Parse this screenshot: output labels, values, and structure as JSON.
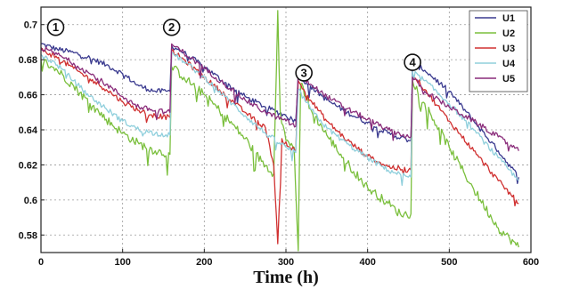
{
  "chart_data": {
    "type": "line",
    "title": "",
    "xlabel": "Time (h)",
    "ylabel": "",
    "xlim": [
      0,
      600
    ],
    "ylim": [
      0.57,
      0.71
    ],
    "x_ticks": [
      0,
      100,
      200,
      300,
      400,
      500,
      600
    ],
    "y_ticks": [
      0.58,
      0.6,
      0.62,
      0.64,
      0.66,
      0.68,
      0.7
    ],
    "grid": true,
    "legend": "top-right",
    "annotations": [
      {
        "label": "1",
        "x": 18,
        "y": 0.6985
      },
      {
        "label": "2",
        "x": 160,
        "y": 0.6985
      },
      {
        "label": "3",
        "x": 322,
        "y": 0.6725
      },
      {
        "label": "4",
        "x": 455,
        "y": 0.6785
      }
    ],
    "series": [
      {
        "name": "U1",
        "color": "#3a3a8f",
        "points": [
          [
            0,
            0.689
          ],
          [
            20,
            0.686
          ],
          [
            40,
            0.684
          ],
          [
            60,
            0.681
          ],
          [
            80,
            0.677
          ],
          [
            100,
            0.672
          ],
          [
            120,
            0.665
          ],
          [
            140,
            0.662
          ],
          [
            158,
            0.662
          ],
          [
            160,
            0.688
          ],
          [
            175,
            0.684
          ],
          [
            200,
            0.676
          ],
          [
            225,
            0.667
          ],
          [
            250,
            0.659
          ],
          [
            275,
            0.653
          ],
          [
            300,
            0.648
          ],
          [
            312,
            0.645
          ],
          [
            315,
            0.671
          ],
          [
            330,
            0.665
          ],
          [
            350,
            0.657
          ],
          [
            375,
            0.65
          ],
          [
            400,
            0.644
          ],
          [
            425,
            0.638
          ],
          [
            450,
            0.634
          ],
          [
            453,
            0.634
          ],
          [
            455,
            0.678
          ],
          [
            470,
            0.674
          ],
          [
            500,
            0.662
          ],
          [
            530,
            0.645
          ],
          [
            560,
            0.628
          ],
          [
            585,
            0.613
          ]
        ]
      },
      {
        "name": "U2",
        "color": "#7abf3c",
        "points": [
          [
            0,
            0.68
          ],
          [
            20,
            0.674
          ],
          [
            40,
            0.665
          ],
          [
            60,
            0.655
          ],
          [
            80,
            0.646
          ],
          [
            100,
            0.638
          ],
          [
            120,
            0.632
          ],
          [
            140,
            0.628
          ],
          [
            158,
            0.626
          ],
          [
            160,
            0.676
          ],
          [
            175,
            0.67
          ],
          [
            200,
            0.66
          ],
          [
            225,
            0.648
          ],
          [
            250,
            0.635
          ],
          [
            270,
            0.622
          ],
          [
            285,
            0.615
          ],
          [
            290,
            0.708
          ],
          [
            293,
            0.65
          ],
          [
            300,
            0.634
          ],
          [
            310,
            0.63
          ],
          [
            315,
            0.571
          ],
          [
            318,
            0.666
          ],
          [
            330,
            0.652
          ],
          [
            350,
            0.637
          ],
          [
            375,
            0.621
          ],
          [
            400,
            0.607
          ],
          [
            425,
            0.598
          ],
          [
            440,
            0.592
          ],
          [
            453,
            0.592
          ],
          [
            455,
            0.668
          ],
          [
            470,
            0.655
          ],
          [
            500,
            0.63
          ],
          [
            530,
            0.606
          ],
          [
            560,
            0.584
          ],
          [
            585,
            0.573
          ]
        ]
      },
      {
        "name": "U3",
        "color": "#d03030",
        "points": [
          [
            0,
            0.686
          ],
          [
            20,
            0.681
          ],
          [
            40,
            0.675
          ],
          [
            60,
            0.669
          ],
          [
            80,
            0.663
          ],
          [
            100,
            0.656
          ],
          [
            120,
            0.651
          ],
          [
            140,
            0.648
          ],
          [
            158,
            0.647
          ],
          [
            160,
            0.685
          ],
          [
            175,
            0.68
          ],
          [
            200,
            0.67
          ],
          [
            225,
            0.66
          ],
          [
            250,
            0.65
          ],
          [
            275,
            0.641
          ],
          [
            285,
            0.62
          ],
          [
            290,
            0.575
          ],
          [
            295,
            0.635
          ],
          [
            305,
            0.63
          ],
          [
            312,
            0.628
          ],
          [
            315,
            0.668
          ],
          [
            330,
            0.657
          ],
          [
            350,
            0.645
          ],
          [
            375,
            0.634
          ],
          [
            400,
            0.625
          ],
          [
            425,
            0.619
          ],
          [
            450,
            0.617
          ],
          [
            453,
            0.617
          ],
          [
            455,
            0.672
          ],
          [
            470,
            0.663
          ],
          [
            500,
            0.645
          ],
          [
            530,
            0.628
          ],
          [
            560,
            0.611
          ],
          [
            585,
            0.598
          ]
        ]
      },
      {
        "name": "U4",
        "color": "#8fcfdc",
        "points": [
          [
            0,
            0.683
          ],
          [
            20,
            0.677
          ],
          [
            40,
            0.668
          ],
          [
            60,
            0.659
          ],
          [
            80,
            0.652
          ],
          [
            100,
            0.645
          ],
          [
            120,
            0.64
          ],
          [
            140,
            0.638
          ],
          [
            158,
            0.637
          ],
          [
            160,
            0.684
          ],
          [
            175,
            0.679
          ],
          [
            200,
            0.67
          ],
          [
            225,
            0.659
          ],
          [
            250,
            0.648
          ],
          [
            275,
            0.638
          ],
          [
            300,
            0.63
          ],
          [
            312,
            0.627
          ],
          [
            315,
            0.663
          ],
          [
            330,
            0.652
          ],
          [
            350,
            0.641
          ],
          [
            375,
            0.632
          ],
          [
            400,
            0.624
          ],
          [
            425,
            0.617
          ],
          [
            450,
            0.613
          ],
          [
            453,
            0.613
          ],
          [
            455,
            0.673
          ],
          [
            470,
            0.668
          ],
          [
            500,
            0.655
          ],
          [
            530,
            0.64
          ],
          [
            560,
            0.624
          ],
          [
            585,
            0.611
          ]
        ]
      },
      {
        "name": "U5",
        "color": "#8a2c7a",
        "points": [
          [
            0,
            0.687
          ],
          [
            20,
            0.683
          ],
          [
            40,
            0.678
          ],
          [
            60,
            0.672
          ],
          [
            80,
            0.666
          ],
          [
            100,
            0.659
          ],
          [
            120,
            0.653
          ],
          [
            140,
            0.651
          ],
          [
            158,
            0.65
          ],
          [
            160,
            0.689
          ],
          [
            175,
            0.684
          ],
          [
            200,
            0.675
          ],
          [
            225,
            0.666
          ],
          [
            250,
            0.657
          ],
          [
            275,
            0.65
          ],
          [
            300,
            0.645
          ],
          [
            312,
            0.642
          ],
          [
            315,
            0.672
          ],
          [
            330,
            0.666
          ],
          [
            350,
            0.659
          ],
          [
            375,
            0.652
          ],
          [
            400,
            0.646
          ],
          [
            425,
            0.64
          ],
          [
            450,
            0.636
          ],
          [
            453,
            0.636
          ],
          [
            455,
            0.67
          ],
          [
            470,
            0.662
          ],
          [
            500,
            0.653
          ],
          [
            530,
            0.645
          ],
          [
            560,
            0.636
          ],
          [
            585,
            0.628
          ]
        ]
      }
    ]
  }
}
